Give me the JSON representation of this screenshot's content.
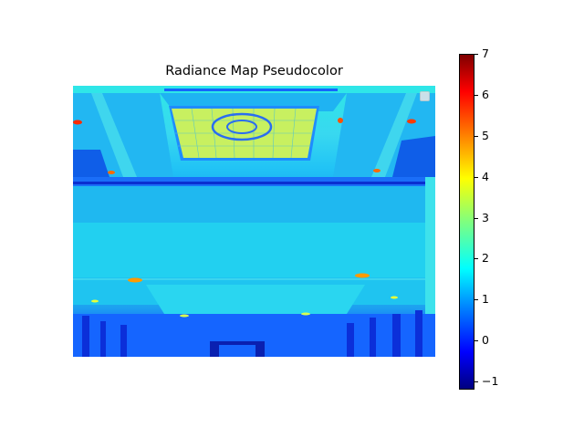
{
  "chart_data": {
    "type": "heatmap",
    "title": "Radiance Map Pseudocolor",
    "xlabel": "",
    "ylabel": "",
    "colormap": "jet",
    "colorbar": {
      "range": [
        -1.2,
        7.0
      ],
      "ticks": [
        {
          "value": -1,
          "label": "−1"
        },
        {
          "value": 0,
          "label": "0"
        },
        {
          "value": 1,
          "label": "1"
        },
        {
          "value": 2,
          "label": "2"
        },
        {
          "value": 3,
          "label": "3"
        },
        {
          "value": 4,
          "label": "4"
        },
        {
          "value": 5,
          "label": "5"
        },
        {
          "value": 6,
          "label": "6"
        },
        {
          "value": 7,
          "label": "7"
        }
      ]
    },
    "axes_visible": false,
    "legend": {
      "placement": "top-right",
      "entries": []
    }
  },
  "colors": {
    "ceiling_panel": "#c8f060",
    "ceiling_band": "#1fb8ee",
    "beam": "#0a2fd0",
    "lower_ceiling": "#22d0f0",
    "floor_area": "#1550ee",
    "hot_spot": "#ff3a00"
  }
}
